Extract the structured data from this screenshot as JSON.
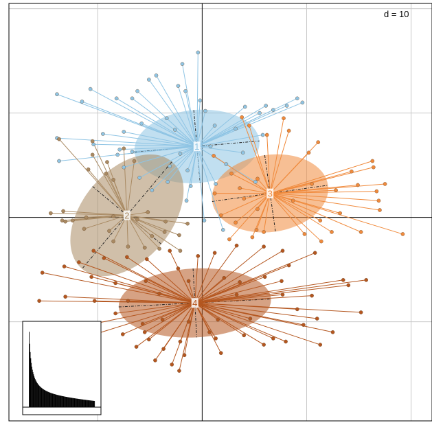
{
  "chart_data": {
    "type": "scatter",
    "scale_label": "d = 10",
    "grid_step": 10,
    "x_range": [
      -18.5,
      22
    ],
    "y_range": [
      -19.5,
      20.5
    ],
    "grid": true,
    "inset": {
      "type": "bar",
      "title": "",
      "content": "eigenvalues"
    },
    "colors": {
      "g1": "#8ec4e4",
      "g2": "#a98a63",
      "g3": "#f08a3c",
      "g4": "#b4561f",
      "grid": "#c8c8c8",
      "axis": "#000000"
    },
    "groups": [
      {
        "label": "1",
        "color_key": "g1",
        "center": [
          -0.5,
          6.8
        ],
        "ellipse": [
          6.0,
          3.5,
          -5
        ],
        "points": [
          [
            -0.4,
            15.8
          ],
          [
            -1.9,
            14.7
          ],
          [
            -4.4,
            13.6
          ],
          [
            -5.1,
            13.2
          ],
          [
            -2.3,
            12.6
          ],
          [
            -10.7,
            12.3
          ],
          [
            -13.9,
            11.8
          ],
          [
            -6.2,
            12.1
          ],
          [
            -1.6,
            12.1
          ],
          [
            -8.2,
            11.4
          ],
          [
            -11.5,
            11.1
          ],
          [
            -6.7,
            11.4
          ],
          [
            -0.2,
            11.2
          ],
          [
            4.1,
            10.6
          ],
          [
            6.1,
            10.7
          ],
          [
            6.8,
            10.3
          ],
          [
            9.1,
            11.4
          ],
          [
            8.1,
            10.7
          ],
          [
            9.6,
            11.0
          ],
          [
            5.5,
            10.0
          ],
          [
            0.3,
            10.2
          ],
          [
            -3.4,
            9.5
          ],
          [
            -5.8,
            9.0
          ],
          [
            -7.5,
            8.2
          ],
          [
            -9.5,
            8.0
          ],
          [
            -2.6,
            8.4
          ],
          [
            1.2,
            8.8
          ],
          [
            3.2,
            8.5
          ],
          [
            5.8,
            7.9
          ],
          [
            -13.9,
            7.6
          ],
          [
            -10.4,
            7.0
          ],
          [
            -7.9,
            6.5
          ],
          [
            -2.1,
            6.1
          ],
          [
            0.8,
            6.8
          ],
          [
            3.9,
            6.2
          ],
          [
            -8.1,
            6.0
          ],
          [
            -6.7,
            6.3
          ],
          [
            -13.7,
            5.4
          ],
          [
            -7.5,
            4.8
          ],
          [
            -3.1,
            4.9
          ],
          [
            -1.4,
            4.5
          ],
          [
            2.3,
            5.1
          ],
          [
            5.1,
            3.4
          ],
          [
            -3.3,
            3.4
          ],
          [
            -1.1,
            3.0
          ],
          [
            1.3,
            3.2
          ],
          [
            -6.0,
            3.8
          ],
          [
            -4.8,
            2.6
          ],
          [
            -1.5,
            1.6
          ],
          [
            0.2,
            -0.3
          ],
          [
            2.0,
            -1.2
          ]
        ]
      },
      {
        "label": "2",
        "color_key": "g2",
        "center": [
          -7.2,
          0.2
        ],
        "ellipse": [
          4.3,
          6.7,
          40
        ],
        "points": [
          [
            -13.7,
            7.5
          ],
          [
            -10.5,
            7.3
          ],
          [
            -7.5,
            6.6
          ],
          [
            -10.5,
            6.0
          ],
          [
            -6.5,
            5.4
          ],
          [
            -9.1,
            5.3
          ],
          [
            -10.9,
            4.6
          ],
          [
            -9.2,
            4.2
          ],
          [
            -8.5,
            3.6
          ],
          [
            -14.5,
            0.4
          ],
          [
            -13.3,
            0.6
          ],
          [
            -13.1,
            -0.4
          ],
          [
            -12.4,
            -0.3
          ],
          [
            -11.1,
            0.0
          ],
          [
            -8.5,
            0.1
          ],
          [
            -6.2,
            -0.2
          ],
          [
            -5.2,
            0.5
          ],
          [
            -3.5,
            -0.4
          ],
          [
            -1.4,
            -0.6
          ],
          [
            -3.6,
            -1.4
          ],
          [
            -8.9,
            -1.3
          ],
          [
            -8.5,
            -2.3
          ],
          [
            -7.1,
            -2.8
          ],
          [
            -5.5,
            -2.9
          ],
          [
            -4.1,
            -3.0
          ],
          [
            -4.8,
            -1.8
          ],
          [
            -2.2,
            -1.7
          ],
          [
            -2.1,
            -3.2
          ],
          [
            -13.4,
            -0.3
          ],
          [
            -11.3,
            -1.1
          ]
        ]
      },
      {
        "label": "3",
        "color_key": "g3",
        "center": [
          6.5,
          2.3
        ],
        "ellipse": [
          5.6,
          3.7,
          -8
        ],
        "points": [
          [
            3.8,
            9.6
          ],
          [
            4.5,
            8.8
          ],
          [
            7.8,
            9.5
          ],
          [
            8.3,
            8.3
          ],
          [
            6.2,
            7.9
          ],
          [
            11.1,
            7.2
          ],
          [
            10.2,
            6.2
          ],
          [
            16.3,
            5.4
          ],
          [
            16.4,
            4.8
          ],
          [
            14.3,
            4.4
          ],
          [
            14.9,
            3.1
          ],
          [
            10.5,
            3.2
          ],
          [
            5.3,
            3.7
          ],
          [
            2.8,
            4.2
          ],
          [
            1.1,
            5.9
          ],
          [
            3.6,
            2.8
          ],
          [
            17.5,
            3.2
          ],
          [
            16.7,
            2.5
          ],
          [
            12.8,
            2.6
          ],
          [
            16.9,
            1.6
          ],
          [
            8.7,
            1.6
          ],
          [
            4.0,
            1.8
          ],
          [
            1.2,
            2.3
          ],
          [
            5.3,
            0.8
          ],
          [
            17.0,
            0.7
          ],
          [
            13.2,
            0.4
          ],
          [
            11.3,
            -0.3
          ],
          [
            12.4,
            -1.4
          ],
          [
            9.8,
            -1.6
          ],
          [
            5.2,
            -1.2
          ],
          [
            3.2,
            -0.5
          ],
          [
            1.8,
            0.2
          ],
          [
            4.8,
            -1.9
          ],
          [
            5.9,
            -1.4
          ],
          [
            19.2,
            -1.6
          ],
          [
            11.4,
            -2.3
          ],
          [
            15.2,
            -1.4
          ],
          [
            2.6,
            -2.1
          ]
        ]
      },
      {
        "label": "4",
        "color_key": "g4",
        "center": [
          -0.7,
          -8.2
        ],
        "ellipse": [
          7.3,
          3.3,
          -3
        ],
        "points": [
          [
            -10.4,
            -3.2
          ],
          [
            -9.4,
            -3.9
          ],
          [
            -7.2,
            -3.8
          ],
          [
            -5.3,
            -4.0
          ],
          [
            -3.1,
            -3.2
          ],
          [
            -2.3,
            -4.9
          ],
          [
            -0.4,
            -3.7
          ],
          [
            1.2,
            -3.4
          ],
          [
            3.3,
            -2.7
          ],
          [
            5.9,
            -2.8
          ],
          [
            7.7,
            -3.2
          ],
          [
            8.3,
            -4.6
          ],
          [
            10.8,
            -3.4
          ],
          [
            -11.8,
            -4.3
          ],
          [
            -13.2,
            -4.7
          ],
          [
            -15.3,
            -5.3
          ],
          [
            -10.6,
            -5.7
          ],
          [
            -8.3,
            -6.3
          ],
          [
            -5.4,
            -6.1
          ],
          [
            -1.3,
            -6.1
          ],
          [
            2.1,
            -5.8
          ],
          [
            3.6,
            -6.2
          ],
          [
            6.0,
            -5.7
          ],
          [
            7.6,
            -6.1
          ],
          [
            13.5,
            -6.0
          ],
          [
            15.7,
            -6.0
          ],
          [
            -13.1,
            -7.6
          ],
          [
            -15.6,
            -8.0
          ],
          [
            -10.3,
            -8.0
          ],
          [
            -7.1,
            -8.0
          ],
          [
            -4.1,
            -7.3
          ],
          [
            3.3,
            -7.4
          ],
          [
            7.7,
            -7.4
          ],
          [
            10.5,
            -7.5
          ],
          [
            14.0,
            -6.5
          ],
          [
            -8.3,
            -9.2
          ],
          [
            -5.7,
            -10.2
          ],
          [
            -3.8,
            -9.8
          ],
          [
            -1.3,
            -10.0
          ],
          [
            1.5,
            -9.8
          ],
          [
            4.6,
            -9.7
          ],
          [
            9.1,
            -8.8
          ],
          [
            11.0,
            -9.7
          ],
          [
            15.2,
            -9.1
          ],
          [
            -13.3,
            -10.8
          ],
          [
            -10.6,
            -11.3
          ],
          [
            -7.6,
            -11.2
          ],
          [
            -5.1,
            -11.7
          ],
          [
            -2.1,
            -11.9
          ],
          [
            1.3,
            -11.6
          ],
          [
            4.0,
            -11.3
          ],
          [
            6.8,
            -11.6
          ],
          [
            9.7,
            -10.3
          ],
          [
            12.5,
            -11.0
          ],
          [
            -6.3,
            -12.4
          ],
          [
            -3.7,
            -12.6
          ],
          [
            -1.7,
            -13.2
          ],
          [
            1.8,
            -13.0
          ],
          [
            5.9,
            -12.2
          ],
          [
            8.0,
            -11.9
          ],
          [
            11.3,
            -12.2
          ],
          [
            -2.9,
            -14.1
          ],
          [
            -2.2,
            -14.7
          ],
          [
            -5.5,
            -11.0
          ],
          [
            -4.5,
            -13.7
          ],
          [
            0.7,
            -11.0
          ]
        ]
      }
    ]
  }
}
